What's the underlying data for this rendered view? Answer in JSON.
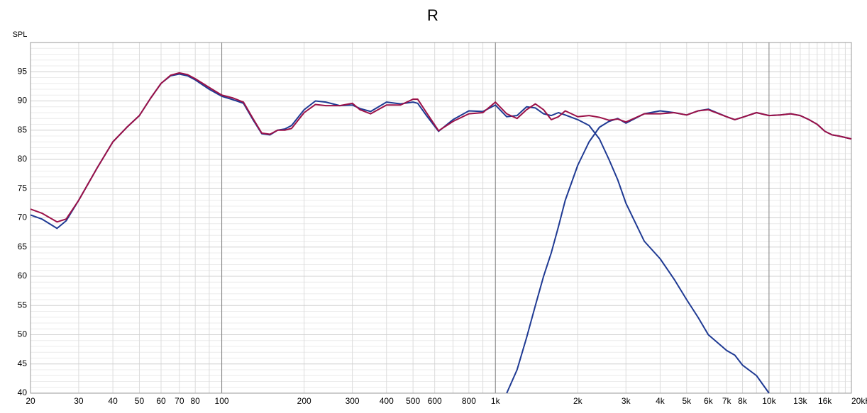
{
  "chart_data": {
    "type": "line",
    "title": "R",
    "y_label": "SPL",
    "log_x": true,
    "grid": true,
    "xlim": [
      20,
      20000
    ],
    "ylim": [
      40,
      100
    ],
    "xticks": [
      20,
      30,
      40,
      50,
      60,
      70,
      80,
      100,
      200,
      300,
      400,
      500,
      600,
      800,
      {
        "value": 1000,
        "label": "1k"
      },
      {
        "value": 2000,
        "label": "2k"
      },
      {
        "value": 3000,
        "label": "3k"
      },
      {
        "value": 4000,
        "label": "4k"
      },
      {
        "value": 5000,
        "label": "5k"
      },
      {
        "value": 6000,
        "label": "6k"
      },
      {
        "value": 7000,
        "label": "7k"
      },
      {
        "value": 8000,
        "label": "8k"
      },
      {
        "value": 10000,
        "label": "10k"
      },
      {
        "value": 13000,
        "label": "13k"
      },
      {
        "value": 16000,
        "label": "16k"
      },
      {
        "value": 20000,
        "label": "20kHz"
      }
    ],
    "major_x_grid": [
      100,
      1000,
      10000
    ],
    "minor_x_grid": [
      30,
      40,
      50,
      60,
      70,
      80,
      90,
      200,
      300,
      400,
      500,
      600,
      700,
      800,
      900,
      2000,
      3000,
      4000,
      5000,
      6000,
      7000,
      8000,
      9000,
      11000,
      12000,
      13000,
      14000,
      15000,
      16000,
      17000,
      18000,
      19000
    ],
    "yticks": [
      40,
      45,
      50,
      55,
      60,
      65,
      70,
      75,
      80,
      85,
      90,
      95
    ],
    "minor_y_grid": [
      41,
      42,
      43,
      44,
      46,
      47,
      48,
      49,
      51,
      52,
      53,
      54,
      56,
      57,
      58,
      59,
      61,
      62,
      63,
      64,
      66,
      67,
      68,
      69,
      71,
      72,
      73,
      74,
      76,
      77,
      78,
      79,
      81,
      82,
      83,
      84,
      86,
      87,
      88,
      89,
      91,
      92,
      93,
      94,
      96,
      97,
      98,
      99
    ],
    "x": [
      20,
      22,
      25,
      27,
      30,
      35,
      40,
      45,
      50,
      55,
      60,
      65,
      70,
      75,
      80,
      90,
      100,
      110,
      120,
      130,
      140,
      150,
      160,
      170,
      180,
      200,
      220,
      240,
      270,
      300,
      320,
      350,
      400,
      450,
      500,
      520,
      560,
      620,
      700,
      800,
      900,
      1000,
      1100,
      1200,
      1300,
      1400,
      1500,
      1600,
      1700,
      1800,
      2000,
      2200,
      2400,
      2600,
      2800,
      3000,
      3500,
      4000,
      4500,
      5000,
      5500,
      6000,
      7000,
      7500,
      8000,
      9000,
      10000,
      11000,
      12000,
      13000,
      14000,
      15000,
      16000,
      17000,
      18000,
      20000
    ],
    "series": [
      {
        "color": "#1f3a93",
        "values": [
          70.5,
          69.8,
          68.2,
          69.5,
          73,
          78.5,
          83,
          85.5,
          87.5,
          90.5,
          93,
          94.3,
          94.6,
          94.3,
          93.6,
          92,
          90.8,
          90.2,
          89.6,
          86.8,
          84.4,
          84.2,
          85,
          85.2,
          85.8,
          88.5,
          90,
          89.8,
          89.2,
          89.3,
          88.7,
          88.2,
          89.8,
          89.5,
          89.8,
          89.6,
          87.5,
          84.8,
          86.8,
          88.3,
          88.2,
          89.3,
          87.3,
          87.5,
          89,
          88.8,
          87.8,
          87.5,
          88,
          87.6,
          86.8,
          85.8,
          83.5,
          80,
          76.5,
          72.5,
          66,
          63,
          59.5,
          56,
          53,
          50,
          47.3,
          46.5,
          44.8,
          43,
          40,
          null,
          null,
          null,
          null,
          null,
          null,
          null,
          null,
          null
        ]
      },
      {
        "color": "#1f3a93",
        "values": [
          null,
          null,
          null,
          null,
          null,
          null,
          null,
          null,
          null,
          null,
          null,
          null,
          null,
          null,
          null,
          null,
          null,
          null,
          null,
          null,
          null,
          null,
          null,
          null,
          null,
          null,
          null,
          null,
          null,
          null,
          null,
          null,
          null,
          null,
          null,
          null,
          null,
          null,
          null,
          null,
          null,
          null,
          40,
          44,
          49.5,
          55,
          60,
          64,
          68.5,
          73,
          79,
          83,
          85.5,
          86.5,
          87,
          86.2,
          87.8,
          88.3,
          88,
          87.6,
          88.3,
          88.6,
          87.3,
          86.8,
          87.2,
          88,
          87.5,
          87.6,
          87.8,
          87.5,
          86.8,
          86,
          84.8,
          84.2,
          84,
          83.5
        ]
      },
      {
        "color": "#9b1148",
        "values": [
          71.5,
          70.8,
          69.3,
          69.8,
          73,
          78.5,
          83,
          85.5,
          87.5,
          90.5,
          93,
          94.4,
          94.8,
          94.5,
          93.8,
          92.3,
          91,
          90.5,
          89.8,
          87,
          84.5,
          84.3,
          85,
          85,
          85.3,
          88,
          89.4,
          89.2,
          89.2,
          89.6,
          88.5,
          87.8,
          89.3,
          89.3,
          90.3,
          90.3,
          88,
          84.9,
          86.5,
          87.8,
          88,
          89.8,
          87.8,
          87,
          88.5,
          89.5,
          88.5,
          86.8,
          87.3,
          88.3,
          87.3,
          87.5,
          87.2,
          86.7,
          86.9,
          86.4,
          87.8,
          87.8,
          88,
          87.6,
          88.3,
          88.5,
          87.3,
          86.8,
          87.2,
          88,
          87.5,
          87.6,
          87.8,
          87.5,
          86.8,
          86,
          84.8,
          84.2,
          84,
          83.5
        ]
      }
    ]
  }
}
